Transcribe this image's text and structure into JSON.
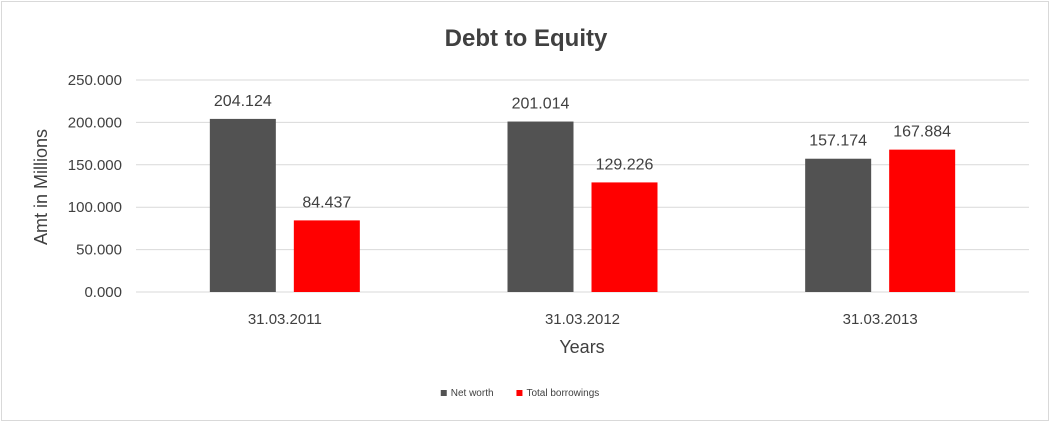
{
  "chart_data": {
    "type": "bar",
    "title": "Debt to Equity",
    "xlabel": "Years",
    "ylabel": "Amt in Millions",
    "categories": [
      "31.03.2011",
      "31.03.2012",
      "31.03.2013"
    ],
    "series": [
      {
        "name": "Net worth",
        "color": "#525252",
        "values": [
          204.124,
          201.014,
          157.174
        ],
        "labels": [
          "204.124",
          "201.014",
          "157.174"
        ]
      },
      {
        "name": "Total borrowings",
        "color": "#ff0000",
        "values": [
          84.437,
          129.226,
          167.884
        ],
        "labels": [
          "84.437",
          "129.226",
          "167.884"
        ]
      }
    ],
    "ylim": [
      0,
      250
    ],
    "yticks": [
      "0.000",
      "50.000",
      "100.000",
      "150.000",
      "200.000",
      "250.000"
    ],
    "grid": true,
    "legend_position": "bottom"
  }
}
